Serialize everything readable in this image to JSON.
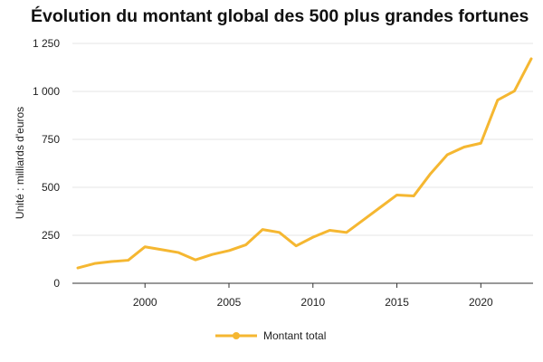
{
  "chart_data": {
    "type": "line",
    "title": "Évolution du montant global des 500 plus grandes fortunes",
    "ylabel": "Unité : milliards d'euros",
    "xlabel": "",
    "xlim": [
      1996,
      2023
    ],
    "ylim": [
      0,
      1250
    ],
    "x_ticks": [
      2000,
      2005,
      2010,
      2015,
      2020
    ],
    "y_ticks": [
      {
        "value": 0,
        "label": "0"
      },
      {
        "value": 250,
        "label": "250"
      },
      {
        "value": 500,
        "label": "500"
      },
      {
        "value": 750,
        "label": "750"
      },
      {
        "value": 1000,
        "label": "1 000"
      },
      {
        "value": 1250,
        "label": "1 250"
      }
    ],
    "grid": "horizontal",
    "legend_position": "bottom",
    "series": [
      {
        "name": "Montant total",
        "color": "#F5B731",
        "points": [
          {
            "x": 1996,
            "y": 80
          },
          {
            "x": 1997,
            "y": 103
          },
          {
            "x": 1998,
            "y": 113
          },
          {
            "x": 1999,
            "y": 120
          },
          {
            "x": 2000,
            "y": 190
          },
          {
            "x": 2001,
            "y": 175
          },
          {
            "x": 2002,
            "y": 160
          },
          {
            "x": 2003,
            "y": 122
          },
          {
            "x": 2004,
            "y": 150
          },
          {
            "x": 2005,
            "y": 170
          },
          {
            "x": 2006,
            "y": 200
          },
          {
            "x": 2007,
            "y": 280
          },
          {
            "x": 2008,
            "y": 265
          },
          {
            "x": 2009,
            "y": 195
          },
          {
            "x": 2010,
            "y": 240
          },
          {
            "x": 2011,
            "y": 276
          },
          {
            "x": 2012,
            "y": 265
          },
          {
            "x": 2013,
            "y": 330
          },
          {
            "x": 2014,
            "y": 395
          },
          {
            "x": 2015,
            "y": 460
          },
          {
            "x": 2016,
            "y": 455
          },
          {
            "x": 2017,
            "y": 571
          },
          {
            "x": 2018,
            "y": 670
          },
          {
            "x": 2019,
            "y": 710
          },
          {
            "x": 2020,
            "y": 730
          },
          {
            "x": 2021,
            "y": 955
          },
          {
            "x": 2022,
            "y": 1002
          },
          {
            "x": 2023,
            "y": 1170
          }
        ]
      }
    ]
  }
}
